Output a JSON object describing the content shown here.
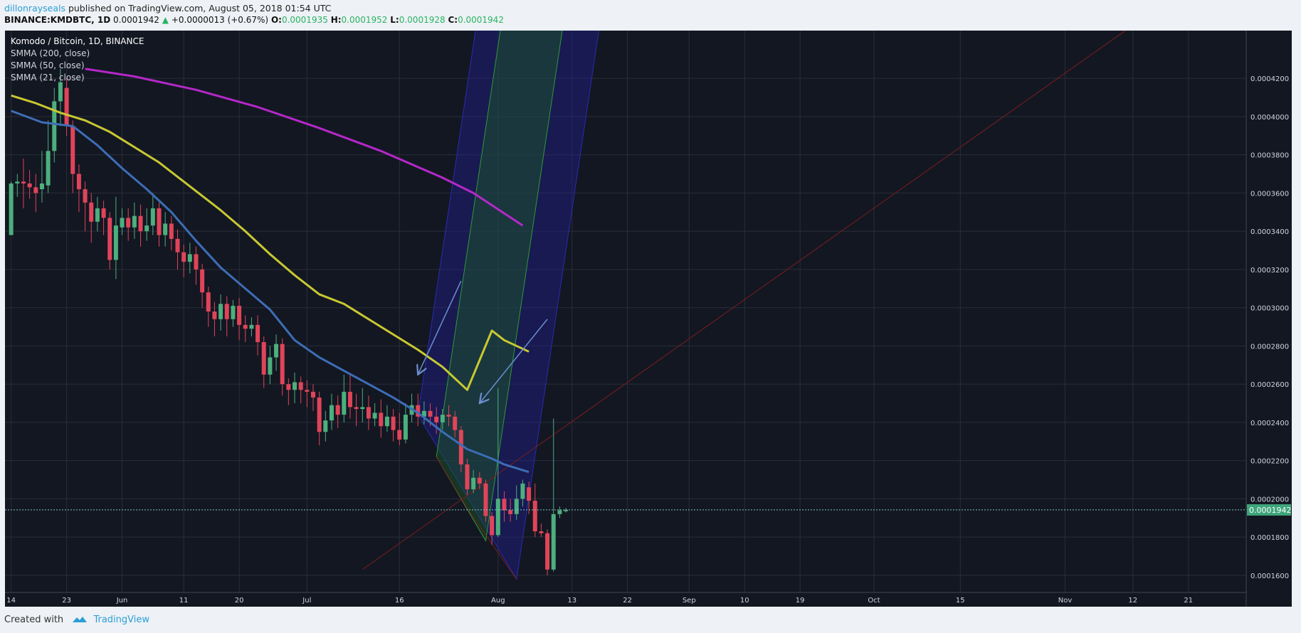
{
  "header": {
    "author": "dillonrayseals",
    "published_text": " published on TradingView.com, August 05, 2018 01:54 UTC"
  },
  "ohlc": {
    "symbol": "BINANCE:KMDBTC, 1D",
    "last": "0.0001942",
    "change": "+0.0000013 (+0.67%)",
    "o_label": "O:",
    "o": "0.0001935",
    "h_label": "H:",
    "h": "0.0001952",
    "l_label": "L:",
    "l": "0.0001928",
    "c_label": "C:",
    "c": "0.0001942"
  },
  "legend": {
    "title": "Komodo / Bitcoin, 1D, BINANCE",
    "items": [
      "SMMA (200, close)",
      "SMMA (50, close)",
      "SMMA (21, close)"
    ]
  },
  "footer": {
    "created_with": "Created with",
    "brand": "TradingView"
  },
  "colors": {
    "background": "#131722",
    "grid": "#2a2e39",
    "up": "#4caf7d",
    "down": "#e0445a",
    "smma200": "#b428c8",
    "smma50": "#c8c832",
    "smma21": "#3d6db5",
    "outer_channel": "#1f1f8c",
    "inner_channel": "#1b5a25",
    "median_line": "#7a1d1d",
    "arrow": "#6b8fd0",
    "price_line": "#7ec8c8",
    "price_badge": "#3ea57a"
  },
  "chart_data": {
    "type": "candlestick",
    "title": "Komodo / Bitcoin, 1D, BINANCE",
    "y_ticks": [
      "0.0001600",
      "0.0001800",
      "0.0002000",
      "0.0002200",
      "0.0002400",
      "0.0002600",
      "0.0002800",
      "0.0003000",
      "0.0003200",
      "0.0003400",
      "0.0003600",
      "0.0003800",
      "0.0004000",
      "0.0004200"
    ],
    "ylim": [
      0.000151,
      0.000445
    ],
    "x_ticks": [
      {
        "label": "14",
        "day": 0
      },
      {
        "label": "23",
        "day": 9
      },
      {
        "label": "Jun",
        "day": 18
      },
      {
        "label": "11",
        "day": 28
      },
      {
        "label": "20",
        "day": 37
      },
      {
        "label": "Jul",
        "day": 48
      },
      {
        "label": "16",
        "day": 63
      },
      {
        "label": "Aug",
        "day": 79
      },
      {
        "label": "13",
        "day": 91
      },
      {
        "label": "22",
        "day": 100
      },
      {
        "label": "Sep",
        "day": 110
      },
      {
        "label": "10",
        "day": 119
      },
      {
        "label": "19",
        "day": 128
      },
      {
        "label": "Oct",
        "day": 140
      },
      {
        "label": "15",
        "day": 154
      },
      {
        "label": "Nov",
        "day": 171
      },
      {
        "label": "12",
        "day": 182
      },
      {
        "label": "21",
        "day": 191
      }
    ],
    "xlim": [
      -1,
      201
    ],
    "first_date": "2018-05-14",
    "last_price": "0.0001942",
    "candles": [
      [
        0.000338,
        0.000365,
        0.000338,
        0.000366
      ],
      [
        0.000365,
        0.000366,
        0.000358,
        0.00037
      ],
      [
        0.000366,
        0.000365,
        0.000352,
        0.000378
      ],
      [
        0.000365,
        0.000363,
        0.000357,
        0.000372
      ],
      [
        0.000363,
        0.00036,
        0.00035,
        0.00037
      ],
      [
        0.000362,
        0.000365,
        0.000355,
        0.000382
      ],
      [
        0.000364,
        0.000382,
        0.00036,
        0.000398
      ],
      [
        0.000382,
        0.000408,
        0.000376,
        0.000415
      ],
      [
        0.000408,
        0.000418,
        0.000395,
        0.000425
      ],
      [
        0.000415,
        0.000395,
        0.00039,
        0.00042
      ],
      [
        0.000395,
        0.00037,
        0.00036,
        0.000398
      ],
      [
        0.00037,
        0.000362,
        0.00035,
        0.000375
      ],
      [
        0.000362,
        0.000355,
        0.00034,
        0.000366
      ],
      [
        0.000355,
        0.000345,
        0.000334,
        0.00036
      ],
      [
        0.000345,
        0.000352,
        0.00034,
        0.000358
      ],
      [
        0.000352,
        0.000347,
        0.000338,
        0.000356
      ],
      [
        0.000347,
        0.000325,
        0.00032,
        0.00035
      ],
      [
        0.000325,
        0.000343,
        0.000315,
        0.000358
      ],
      [
        0.000342,
        0.000347,
        0.000338,
        0.000352
      ],
      [
        0.000347,
        0.000342,
        0.000335,
        0.000352
      ],
      [
        0.000342,
        0.000348,
        0.000336,
        0.000355
      ],
      [
        0.000348,
        0.00034,
        0.000332,
        0.000354
      ],
      [
        0.00034,
        0.000343,
        0.000335,
        0.000352
      ],
      [
        0.000343,
        0.000352,
        0.000338,
        0.00036
      ],
      [
        0.000352,
        0.000338,
        0.000332,
        0.000355
      ],
      [
        0.000338,
        0.000344,
        0.000332,
        0.00035
      ],
      [
        0.000344,
        0.000336,
        0.00033,
        0.000348
      ],
      [
        0.000336,
        0.000329,
        0.00032,
        0.000341
      ],
      [
        0.000329,
        0.000324,
        0.000316,
        0.000333
      ],
      [
        0.000324,
        0.000328,
        0.000318,
        0.000334
      ],
      [
        0.000328,
        0.00032,
        0.000312,
        0.000332
      ],
      [
        0.00032,
        0.000308,
        0.0003,
        0.000323
      ],
      [
        0.000308,
        0.000298,
        0.00029,
        0.000311
      ],
      [
        0.000298,
        0.000294,
        0.000285,
        0.000303
      ],
      [
        0.000294,
        0.000302,
        0.000288,
        0.000307
      ],
      [
        0.000302,
        0.000294,
        0.000285,
        0.000306
      ],
      [
        0.000294,
        0.000301,
        0.00029,
        0.000304
      ],
      [
        0.000301,
        0.000291,
        0.000283,
        0.000305
      ],
      [
        0.000291,
        0.000289,
        0.000282,
        0.000296
      ],
      [
        0.000289,
        0.000291,
        0.000285,
        0.000295
      ],
      [
        0.000291,
        0.000282,
        0.000275,
        0.000296
      ],
      [
        0.000282,
        0.000265,
        0.000258,
        0.000285
      ],
      [
        0.000265,
        0.000274,
        0.00026,
        0.00028
      ],
      [
        0.000274,
        0.000281,
        0.000267,
        0.000286
      ],
      [
        0.000281,
        0.00026,
        0.000254,
        0.000284
      ],
      [
        0.00026,
        0.000257,
        0.000249,
        0.000263
      ],
      [
        0.000257,
        0.000261,
        0.00025,
        0.000266
      ],
      [
        0.000261,
        0.000257,
        0.00025,
        0.000264
      ],
      [
        0.000257,
        0.000256,
        0.000248,
        0.000262
      ],
      [
        0.000256,
        0.000253,
        0.000246,
        0.00026
      ],
      [
        0.000253,
        0.000235,
        0.000228,
        0.000256
      ],
      [
        0.000235,
        0.000241,
        0.00023,
        0.000246
      ],
      [
        0.000241,
        0.000249,
        0.000236,
        0.000255
      ],
      [
        0.000249,
        0.000244,
        0.000237,
        0.000254
      ],
      [
        0.000244,
        0.000256,
        0.00024,
        0.000265
      ],
      [
        0.000256,
        0.000248,
        0.000242,
        0.000265
      ],
      [
        0.000248,
        0.000247,
        0.000238,
        0.000255
      ],
      [
        0.000247,
        0.000248,
        0.00024,
        0.000258
      ],
      [
        0.000248,
        0.000242,
        0.000236,
        0.000254
      ],
      [
        0.000242,
        0.000245,
        0.000238,
        0.00025
      ],
      [
        0.000245,
        0.000238,
        0.000232,
        0.000252
      ],
      [
        0.000238,
        0.000243,
        0.000235,
        0.000249
      ],
      [
        0.000243,
        0.000236,
        0.00023,
        0.000247
      ],
      [
        0.000236,
        0.000231,
        0.000228,
        0.000245
      ],
      [
        0.000231,
        0.000244,
        0.000229,
        0.00025
      ],
      [
        0.000244,
        0.000249,
        0.00024,
        0.000255
      ],
      [
        0.000249,
        0.000243,
        0.000238,
        0.000255
      ],
      [
        0.000243,
        0.000246,
        0.000239,
        0.000251
      ],
      [
        0.000246,
        0.000243,
        0.000238,
        0.00025
      ],
      [
        0.000243,
        0.00024,
        0.000234,
        0.000248
      ],
      [
        0.00024,
        0.000244,
        0.000236,
        0.000247
      ],
      [
        0.000244,
        0.000243,
        0.000238,
        0.000249
      ],
      [
        0.000243,
        0.000236,
        0.000232,
        0.000246
      ],
      [
        0.000236,
        0.000218,
        0.000214,
        0.000238
      ],
      [
        0.000218,
        0.000205,
        0.000202,
        0.000221
      ],
      [
        0.000205,
        0.000211,
        0.000203,
        0.000215
      ],
      [
        0.000211,
        0.000208,
        0.000205,
        0.000214
      ],
      [
        0.000208,
        0.000191,
        0.000188,
        0.00021
      ],
      [
        0.000191,
        0.000181,
        0.000176,
        0.000193
      ],
      [
        0.000181,
        0.0002,
        0.00018,
        0.000258
      ],
      [
        0.0002,
        0.000194,
        0.000188,
        0.000204
      ],
      [
        0.000194,
        0.000192,
        0.000188,
        0.0002
      ],
      [
        0.000192,
        0.0002,
        0.000189,
        0.000207
      ],
      [
        0.0002,
        0.000208,
        0.000196,
        0.00021
      ],
      [
        0.000206,
        0.000199,
        0.000192,
        0.000209
      ],
      [
        0.000199,
        0.000183,
        0.00018,
        0.000208
      ],
      [
        0.000183,
        0.000182,
        0.00018,
        0.000187
      ],
      [
        0.000182,
        0.000163,
        0.00016,
        0.000184
      ],
      [
        0.000163,
        0.000192,
        0.000162,
        0.000242
      ],
      [
        0.000192,
        0.000194,
        0.00019,
        0.000196
      ],
      [
        0.0001935,
        0.0001942,
        0.0001928,
        0.0001952
      ]
    ],
    "series": [
      {
        "name": "SMMA (200, close)",
        "points": [
          [
            12,
            0.000425
          ],
          [
            20,
            0.000421
          ],
          [
            30,
            0.000414
          ],
          [
            40,
            0.000405
          ],
          [
            50,
            0.000394
          ],
          [
            60,
            0.000382
          ],
          [
            70,
            0.000368
          ],
          [
            75,
            0.00036
          ],
          [
            83,
            0.000343
          ]
        ]
      },
      {
        "name": "SMMA (50, close)",
        "points": [
          [
            0,
            0.000411
          ],
          [
            4,
            0.000407
          ],
          [
            8,
            0.000402
          ],
          [
            12,
            0.000398
          ],
          [
            16,
            0.000392
          ],
          [
            20,
            0.000384
          ],
          [
            24,
            0.000376
          ],
          [
            30,
            0.000361
          ],
          [
            34,
            0.000351
          ],
          [
            38,
            0.00034
          ],
          [
            42,
            0.000328
          ],
          [
            46,
            0.000317
          ],
          [
            50,
            0.000307
          ],
          [
            54,
            0.000302
          ],
          [
            58,
            0.000294
          ],
          [
            62,
            0.000286
          ],
          [
            66,
            0.000278
          ],
          [
            70,
            0.000269
          ],
          [
            74,
            0.000257
          ],
          [
            78,
            0.000288
          ],
          [
            80,
            0.000283
          ],
          [
            84,
            0.000277
          ]
        ]
      },
      {
        "name": "SMMA (21, close)",
        "points": [
          [
            0,
            0.000403
          ],
          [
            5,
            0.000397
          ],
          [
            10,
            0.000395
          ],
          [
            14,
            0.000385
          ],
          [
            18,
            0.000373
          ],
          [
            22,
            0.000362
          ],
          [
            26,
            0.00035
          ],
          [
            30,
            0.000335
          ],
          [
            34,
            0.000321
          ],
          [
            38,
            0.00031
          ],
          [
            42,
            0.000299
          ],
          [
            46,
            0.000283
          ],
          [
            50,
            0.000274
          ],
          [
            54,
            0.000267
          ],
          [
            58,
            0.00026
          ],
          [
            62,
            0.000253
          ],
          [
            66,
            0.000245
          ],
          [
            70,
            0.000235
          ],
          [
            74,
            0.000226
          ],
          [
            78,
            0.000221
          ],
          [
            80,
            0.000218
          ],
          [
            84,
            0.000214
          ]
        ]
      }
    ]
  }
}
